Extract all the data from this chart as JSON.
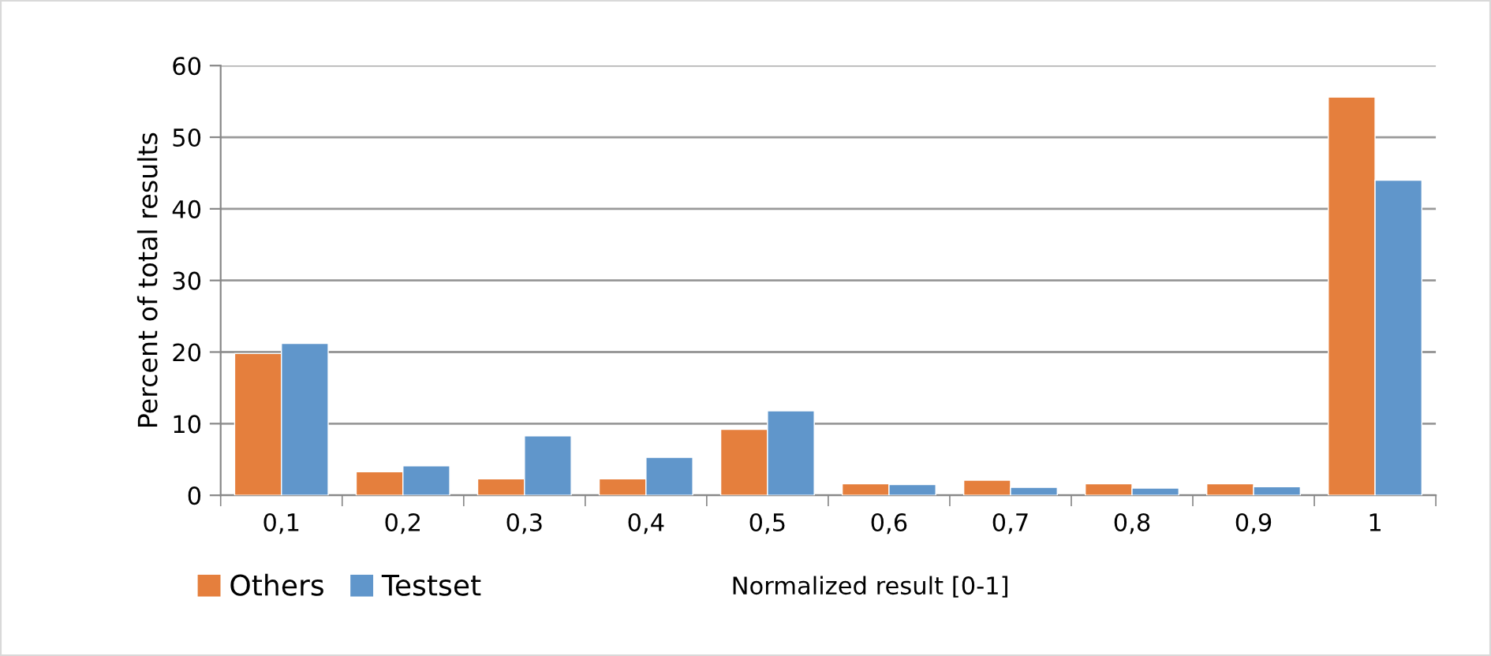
{
  "chart_data": {
    "type": "bar",
    "xlabel": "Normalized result [0-1]",
    "ylabel": "Percent of total results",
    "categories": [
      "0,1",
      "0,2",
      "0,3",
      "0,4",
      "0,5",
      "0,6",
      "0,7",
      "0,8",
      "0,9",
      "1"
    ],
    "series": [
      {
        "name": "Others",
        "color": "#e57f3d",
        "values": [
          19.8,
          3.3,
          2.3,
          2.3,
          9.2,
          1.6,
          2.1,
          1.6,
          1.6,
          55.6
        ]
      },
      {
        "name": "Testset",
        "color": "#6096cb",
        "values": [
          21.2,
          4.1,
          8.3,
          5.3,
          11.8,
          1.5,
          1.1,
          1.0,
          1.2,
          44.0
        ]
      }
    ],
    "ylim": [
      0,
      60
    ],
    "yticks": [
      0,
      10,
      20,
      30,
      40,
      50,
      60
    ],
    "grid": "y",
    "legend": "bottom left"
  }
}
